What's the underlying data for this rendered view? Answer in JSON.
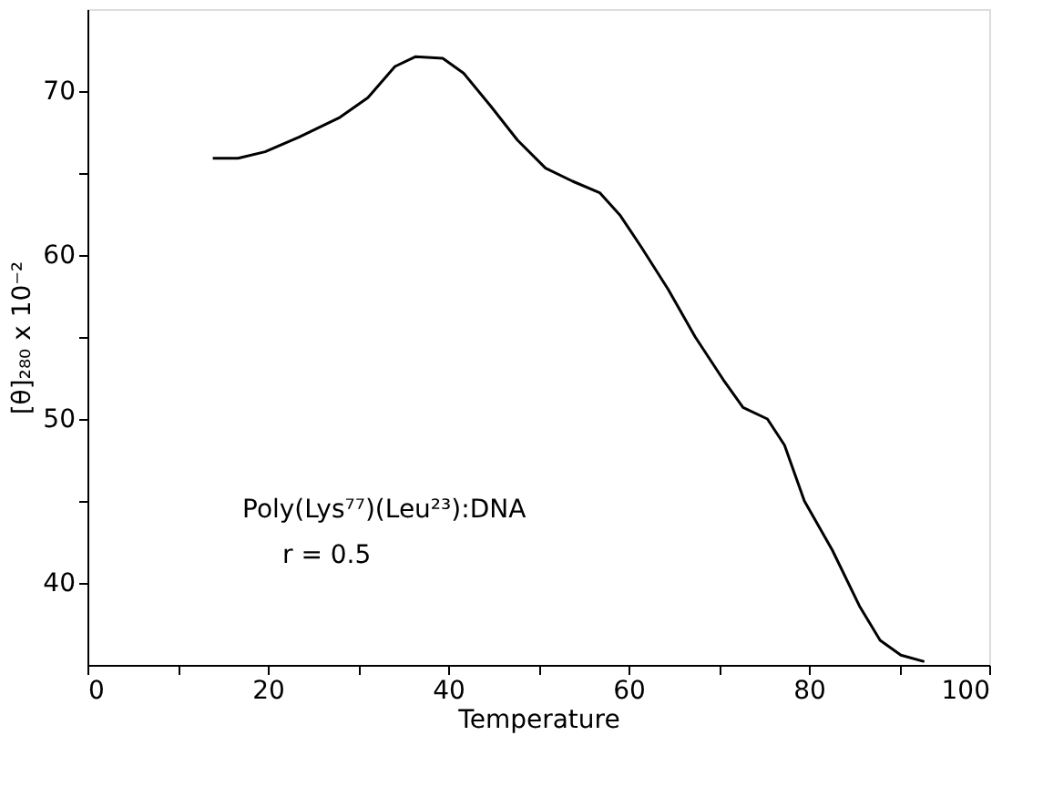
{
  "chart_data": {
    "type": "line",
    "xlabel": "Temperature",
    "ylabel": "[θ]₂₈₀ x 10⁻²",
    "annotations": [
      "Poly(Lys⁷⁷)(Leu²³):DNA",
      "r = 0.5"
    ],
    "x": [
      13.9,
      16.7,
      19.7,
      23.5,
      28.0,
      31.1,
      34.1,
      36.4,
      39.4,
      41.7,
      44.7,
      47.7,
      50.8,
      53.8,
      56.8,
      59.1,
      61.4,
      64.4,
      67.4,
      70.5,
      72.7,
      75.4,
      77.3,
      79.5,
      82.6,
      85.6,
      87.9,
      90.2,
      92.8
    ],
    "series": [
      {
        "color": "#000000",
        "values": [
          65.9,
          65.9,
          66.3,
          67.2,
          68.4,
          69.6,
          71.5,
          72.1,
          72.0,
          71.1,
          69.1,
          67.0,
          65.3,
          64.5,
          63.8,
          62.4,
          60.5,
          57.9,
          55.0,
          52.4,
          50.7,
          50.0,
          48.4,
          45.0,
          42.0,
          38.6,
          36.5,
          35.6,
          35.2
        ]
      }
    ],
    "xlim": [
      0,
      100
    ],
    "xticks": [
      0,
      {
        "value": 10,
        "label": null
      },
      20,
      {
        "value": 30,
        "label": null
      },
      40,
      {
        "value": 50,
        "label": null
      },
      60,
      {
        "value": 70,
        "label": null
      },
      80,
      {
        "value": 90,
        "label": null
      },
      100
    ],
    "ylim": [
      35,
      75
    ],
    "yticks": [
      40,
      {
        "value": 45,
        "label": null
      },
      50,
      {
        "value": 55,
        "label": null
      },
      60,
      {
        "value": 65,
        "label": null
      },
      70
    ],
    "grid": false,
    "marker": "none",
    "line_style": "solid"
  }
}
